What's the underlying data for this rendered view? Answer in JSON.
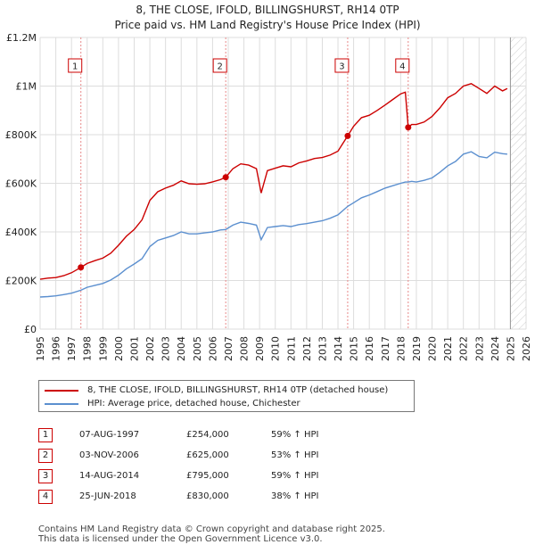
{
  "header": {
    "title": "8, THE CLOSE, IFOLD, BILLINGSHURST, RH14 0TP",
    "subtitle": "Price paid vs. HM Land Registry's House Price Index (HPI)"
  },
  "chart_data": {
    "type": "line",
    "title": "8, THE CLOSE, IFOLD, BILLINGSHURST, RH14 0TP",
    "subtitle": "Price paid vs. HM Land Registry's House Price Index (HPI)",
    "xlabel": "",
    "ylabel": "",
    "xlim": [
      1995,
      2026
    ],
    "ylim": [
      0,
      1200000
    ],
    "x_ticks": [
      1995,
      1996,
      1997,
      1998,
      1999,
      2000,
      2001,
      2002,
      2003,
      2004,
      2005,
      2006,
      2007,
      2008,
      2009,
      2010,
      2011,
      2012,
      2013,
      2014,
      2015,
      2016,
      2017,
      2018,
      2019,
      2020,
      2021,
      2022,
      2023,
      2024,
      2025,
      2026
    ],
    "y_ticks": [
      {
        "value": 0,
        "label": "£0"
      },
      {
        "value": 200000,
        "label": "£200K"
      },
      {
        "value": 400000,
        "label": "£400K"
      },
      {
        "value": 600000,
        "label": "£600K"
      },
      {
        "value": 800000,
        "label": "£800K"
      },
      {
        "value": 1000000,
        "label": "£1M"
      },
      {
        "value": 1200000,
        "label": "£1.2M"
      }
    ],
    "grid": true,
    "series": [
      {
        "name": "8, THE CLOSE, IFOLD, BILLINGSHURST, RH14 0TP (detached house)",
        "color": "#cc0000",
        "x": [
          1995.0,
          1995.5,
          1996.0,
          1996.5,
          1997.0,
          1997.6,
          1998.0,
          1998.5,
          1999.0,
          1999.5,
          2000.0,
          2000.5,
          2001.0,
          2001.5,
          2002.0,
          2002.5,
          2003.0,
          2003.5,
          2004.0,
          2004.5,
          2005.0,
          2005.5,
          2006.0,
          2006.5,
          2006.84,
          2007.3,
          2007.8,
          2008.3,
          2008.8,
          2009.1,
          2009.5,
          2010.0,
          2010.5,
          2011.0,
          2011.5,
          2012.0,
          2012.5,
          2013.0,
          2013.5,
          2014.0,
          2014.62,
          2015.0,
          2015.5,
          2016.0,
          2016.5,
          2017.0,
          2017.5,
          2018.0,
          2018.3,
          2018.48,
          2018.7,
          2019.0,
          2019.5,
          2020.0,
          2020.5,
          2021.0,
          2021.5,
          2022.0,
          2022.5,
          2023.0,
          2023.5,
          2024.0,
          2024.5,
          2024.8
        ],
        "values": [
          205000,
          210000,
          212000,
          220000,
          232000,
          254000,
          270000,
          282000,
          292000,
          312000,
          345000,
          382000,
          410000,
          450000,
          530000,
          565000,
          580000,
          592000,
          610000,
          598000,
          596000,
          598000,
          606000,
          615000,
          625000,
          660000,
          680000,
          675000,
          660000,
          560000,
          652000,
          662000,
          672000,
          668000,
          684000,
          692000,
          702000,
          706000,
          716000,
          732000,
          795000,
          835000,
          870000,
          880000,
          900000,
          922000,
          945000,
          968000,
          975000,
          830000,
          842000,
          842000,
          852000,
          875000,
          910000,
          952000,
          970000,
          1000000,
          1010000,
          990000,
          970000,
          1000000,
          980000,
          990000
        ]
      },
      {
        "name": "HPI: Average price, detached house, Chichester",
        "color": "#5b8fcf",
        "x": [
          1995.0,
          1995.5,
          1996.0,
          1996.5,
          1997.0,
          1997.6,
          1998.0,
          1998.5,
          1999.0,
          1999.5,
          2000.0,
          2000.5,
          2001.0,
          2001.5,
          2002.0,
          2002.5,
          2003.0,
          2003.5,
          2004.0,
          2004.5,
          2005.0,
          2005.5,
          2006.0,
          2006.5,
          2006.84,
          2007.3,
          2007.8,
          2008.3,
          2008.8,
          2009.1,
          2009.5,
          2010.0,
          2010.5,
          2011.0,
          2011.5,
          2012.0,
          2012.5,
          2013.0,
          2013.5,
          2014.0,
          2014.62,
          2015.0,
          2015.5,
          2016.0,
          2016.5,
          2017.0,
          2017.5,
          2018.0,
          2018.3,
          2018.48,
          2018.7,
          2019.0,
          2019.5,
          2020.0,
          2020.5,
          2021.0,
          2021.5,
          2022.0,
          2022.5,
          2023.0,
          2023.5,
          2024.0,
          2024.5,
          2024.8
        ],
        "values": [
          132000,
          134000,
          137000,
          142000,
          148000,
          160000,
          172000,
          180000,
          188000,
          202000,
          222000,
          248000,
          268000,
          290000,
          340000,
          365000,
          375000,
          385000,
          400000,
          392000,
          392000,
          396000,
          400000,
          408000,
          410000,
          428000,
          440000,
          435000,
          428000,
          368000,
          418000,
          422000,
          426000,
          422000,
          430000,
          434000,
          440000,
          446000,
          456000,
          470000,
          505000,
          520000,
          540000,
          552000,
          566000,
          580000,
          590000,
          600000,
          605000,
          605000,
          608000,
          605000,
          612000,
          622000,
          645000,
          672000,
          690000,
          720000,
          730000,
          710000,
          705000,
          728000,
          722000,
          720000
        ]
      }
    ],
    "sale_markers": [
      {
        "label": "1",
        "x": 1997.6,
        "value": 254000
      },
      {
        "label": "2",
        "x": 2006.84,
        "value": 625000
      },
      {
        "label": "3",
        "x": 2014.62,
        "value": 795000
      },
      {
        "label": "4",
        "x": 2018.48,
        "value": 830000
      }
    ],
    "shaded_after": 2025
  },
  "legend": {
    "items": [
      {
        "label": "8, THE CLOSE, IFOLD, BILLINGSHURST, RH14 0TP (detached house)",
        "color": "#cc0000"
      },
      {
        "label": "HPI: Average price, detached house, Chichester",
        "color": "#5b8fcf"
      }
    ]
  },
  "sales": [
    {
      "num": "1",
      "date": "07-AUG-1997",
      "price": "£254,000",
      "hpi": "59% ↑ HPI"
    },
    {
      "num": "2",
      "date": "03-NOV-2006",
      "price": "£625,000",
      "hpi": "53% ↑ HPI"
    },
    {
      "num": "3",
      "date": "14-AUG-2014",
      "price": "£795,000",
      "hpi": "59% ↑ HPI"
    },
    {
      "num": "4",
      "date": "25-JUN-2018",
      "price": "£830,000",
      "hpi": "38% ↑ HPI"
    }
  ],
  "footer": {
    "line1": "Contains HM Land Registry data © Crown copyright and database right 2025.",
    "line2": "This data is licensed under the Open Government Licence v3.0."
  }
}
